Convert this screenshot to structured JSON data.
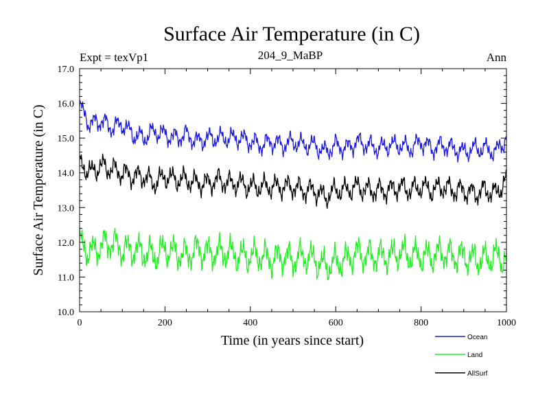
{
  "chart_data": {
    "type": "line",
    "title": "Surface Air Temperature (in C)",
    "subtitle_left": "Expt = texVp1",
    "subtitle_center": "204_9_MaBP",
    "subtitle_right": "Ann",
    "xlabel": "Time (in years since start)",
    "ylabel": "Surface Air Temperature (in C)",
    "xlim": [
      0,
      1000
    ],
    "ylim": [
      10.0,
      17.0
    ],
    "x_ticks": [
      0,
      200,
      400,
      600,
      800,
      1000
    ],
    "x_tick_labels": [
      "0",
      "200",
      "400",
      "600",
      "800",
      "1000"
    ],
    "y_ticks": [
      10,
      11,
      12,
      13,
      14,
      15,
      16,
      17
    ],
    "y_tick_labels": [
      "10.0",
      "11.0",
      "12.0",
      "13.0",
      "14.0",
      "15.0",
      "16.0",
      "17.0"
    ],
    "grid": false,
    "legend_position": "bottom-right",
    "series": [
      {
        "name": "Ocean",
        "color": "#1a1adc",
        "x": [
          0,
          25,
          50,
          75,
          100,
          125,
          150,
          175,
          200,
          225,
          250,
          275,
          300,
          325,
          350,
          375,
          400,
          425,
          450,
          475,
          500,
          525,
          550,
          575,
          600,
          625,
          650,
          675,
          700,
          725,
          750,
          775,
          800,
          825,
          850,
          875,
          900,
          925,
          950,
          975,
          1000
        ],
        "values": [
          15.9,
          15.4,
          15.5,
          15.3,
          15.4,
          15.1,
          15.0,
          15.2,
          15.1,
          15.0,
          15.1,
          14.9,
          15.0,
          15.0,
          15.0,
          15.0,
          14.9,
          14.8,
          14.9,
          14.8,
          14.9,
          14.8,
          14.8,
          14.6,
          14.8,
          14.7,
          14.9,
          14.8,
          14.7,
          14.8,
          14.8,
          14.7,
          14.9,
          14.7,
          14.8,
          14.7,
          14.6,
          14.7,
          14.7,
          14.6,
          15.0
        ],
        "amplitude": 0.28
      },
      {
        "name": "Land",
        "color": "#22ee22",
        "x": [
          0,
          25,
          50,
          75,
          100,
          125,
          150,
          175,
          200,
          225,
          250,
          275,
          300,
          325,
          350,
          375,
          400,
          425,
          450,
          475,
          500,
          525,
          550,
          575,
          600,
          625,
          650,
          675,
          700,
          725,
          750,
          775,
          800,
          825,
          850,
          875,
          900,
          925,
          950,
          975,
          1000
        ],
        "values": [
          12.0,
          11.7,
          11.9,
          12.0,
          11.8,
          11.8,
          11.7,
          11.6,
          11.8,
          11.7,
          11.6,
          11.8,
          11.7,
          11.7,
          11.7,
          11.6,
          11.6,
          11.6,
          11.5,
          11.6,
          11.5,
          11.6,
          11.5,
          11.3,
          11.4,
          11.5,
          11.7,
          11.6,
          11.6,
          11.6,
          11.7,
          11.6,
          11.6,
          11.6,
          11.7,
          11.6,
          11.6,
          11.5,
          11.5,
          11.6,
          11.5
        ],
        "amplitude": 0.45
      },
      {
        "name": "AllSurf",
        "color": "#000000",
        "x": [
          0,
          25,
          50,
          75,
          100,
          125,
          150,
          175,
          200,
          225,
          250,
          275,
          300,
          325,
          350,
          375,
          400,
          425,
          450,
          475,
          500,
          525,
          550,
          575,
          600,
          625,
          650,
          675,
          700,
          725,
          750,
          775,
          800,
          825,
          850,
          875,
          900,
          925,
          950,
          975,
          1000
        ],
        "values": [
          14.3,
          14.0,
          14.2,
          14.1,
          14.0,
          13.9,
          13.9,
          13.7,
          13.9,
          13.8,
          13.8,
          13.7,
          13.7,
          13.8,
          13.7,
          13.7,
          13.6,
          13.6,
          13.6,
          13.6,
          13.6,
          13.5,
          13.5,
          13.3,
          13.5,
          13.5,
          13.6,
          13.5,
          13.5,
          13.5,
          13.6,
          13.5,
          13.6,
          13.5,
          13.6,
          13.5,
          13.5,
          13.4,
          13.5,
          13.4,
          13.8
        ],
        "amplitude": 0.32
      }
    ]
  }
}
